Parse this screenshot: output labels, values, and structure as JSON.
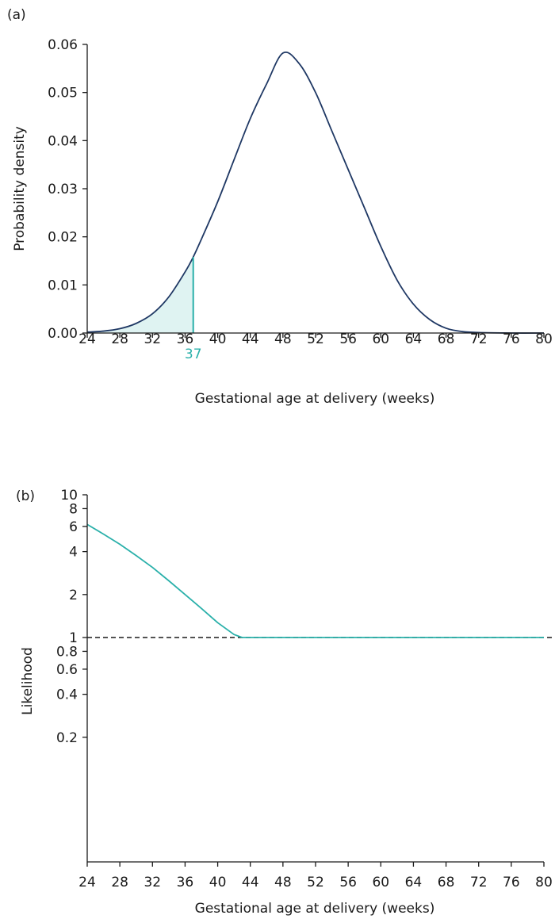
{
  "chart_data": [
    {
      "panel_label": "(a)",
      "type": "line",
      "xlabel": "Gestational age at delivery (weeks)",
      "ylabel": "Probability density",
      "xlim": [
        24,
        80
      ],
      "ylim": [
        0,
        0.06
      ],
      "x_ticks": [
        24,
        28,
        32,
        36,
        40,
        44,
        48,
        52,
        56,
        60,
        64,
        68,
        72,
        76,
        80
      ],
      "y_ticks": [
        "0.00",
        "0.01",
        "0.02",
        "0.03",
        "0.04",
        "0.05",
        "0.06"
      ],
      "curve": {
        "color": "#1f3864",
        "x": [
          24,
          26,
          28,
          30,
          32,
          34,
          36,
          37,
          38,
          40,
          42,
          44,
          46,
          48,
          50,
          52,
          54,
          56,
          58,
          60,
          62,
          64,
          66,
          68,
          70,
          72,
          76,
          80
        ],
        "y": [
          0.0002,
          0.0004,
          0.0009,
          0.002,
          0.004,
          0.0075,
          0.0127,
          0.0158,
          0.0195,
          0.0273,
          0.036,
          0.0446,
          0.0518,
          0.0582,
          0.056,
          0.05,
          0.042,
          0.034,
          0.026,
          0.018,
          0.011,
          0.006,
          0.0028,
          0.001,
          0.0003,
          0.0001,
          0.0,
          0.0
        ]
      },
      "shaded_region": {
        "x_from": 24,
        "x_to": 37,
        "color": "#2ab0aa"
      },
      "marker": {
        "x": 37,
        "label": "37",
        "color": "#2ab0aa"
      }
    },
    {
      "panel_label": "(b)",
      "type": "line",
      "xlabel": "Gestational age at delivery (weeks)",
      "ylabel": "Likelihood",
      "y_scale": "log",
      "xlim": [
        24,
        80
      ],
      "ylim": [
        0.08,
        10
      ],
      "x_ticks": [
        24,
        28,
        32,
        36,
        40,
        44,
        48,
        52,
        56,
        60,
        64,
        68,
        72,
        76,
        80
      ],
      "y_ticks": [
        0.2,
        0.4,
        0.6,
        0.8,
        1,
        2,
        4,
        6,
        8,
        10
      ],
      "y_tick_labels": [
        "0.2",
        "0.4",
        "0.6",
        "0.8",
        "1",
        "2",
        "4",
        "6",
        "8",
        "10"
      ],
      "curve": {
        "color": "#2ab0aa",
        "x": [
          24,
          26,
          28,
          30,
          32,
          34,
          36,
          38,
          40,
          42,
          43,
          44,
          50,
          60,
          70,
          80
        ],
        "y": [
          6.2,
          5.3,
          4.5,
          3.75,
          3.1,
          2.5,
          2.0,
          1.6,
          1.27,
          1.05,
          1.0,
          1.0,
          1.0,
          1.0,
          1.0,
          1.0
        ]
      },
      "reference_line": {
        "y": 1,
        "style": "dashed",
        "color": "#1a1a1a"
      }
    }
  ]
}
